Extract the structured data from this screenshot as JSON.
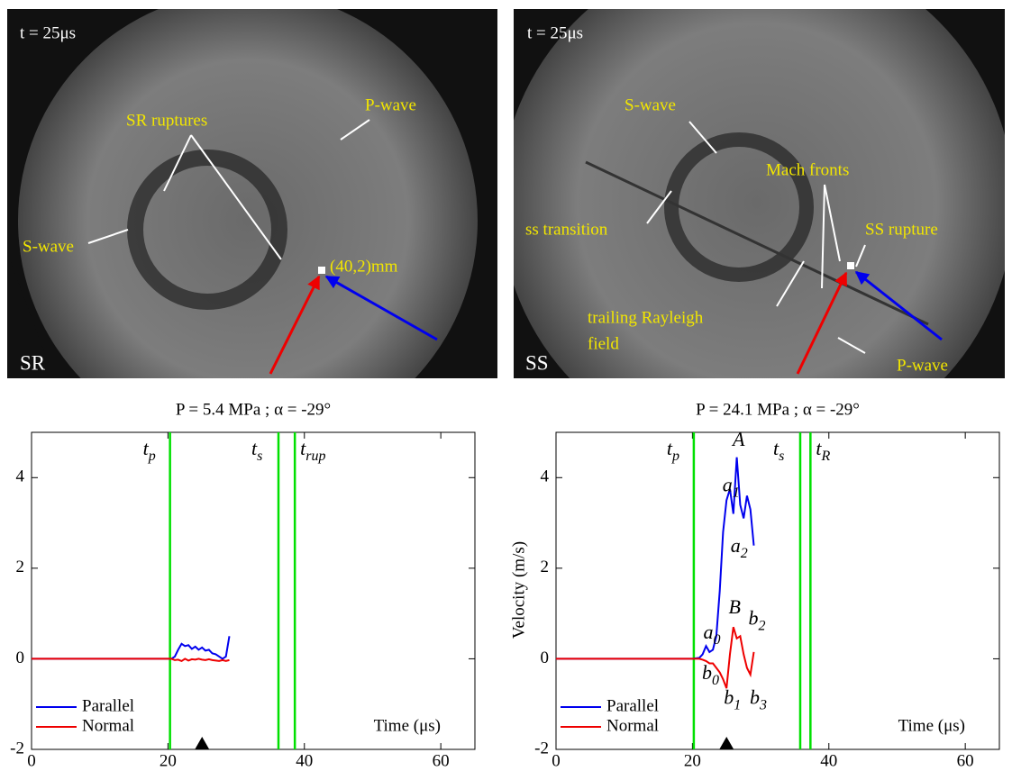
{
  "panels": [
    {
      "time_label": "t = 25μs",
      "corner_label": "SR",
      "annotations": [
        "SR ruptures",
        "P-wave",
        "S-wave",
        "(40,2)mm"
      ]
    },
    {
      "time_label": "t = 25μs",
      "corner_label": "SS",
      "annotations": [
        "S-wave",
        "Mach fronts",
        "ss transition",
        "SS rupture",
        "trailing Rayleigh",
        "field",
        "P-wave"
      ]
    }
  ],
  "chart_data": [
    {
      "type": "line",
      "title": "P =  5.4 MPa ; α = -29°",
      "xlabel": "Time (μs)",
      "x": [
        0,
        5,
        10,
        15,
        20,
        20.5,
        21,
        21.5,
        22,
        22.5,
        23,
        23.5,
        24,
        24.5,
        25,
        25.5,
        26,
        26.5,
        27,
        27.5,
        28,
        28.5,
        29
      ],
      "series": [
        {
          "name": "Parallel",
          "color": "#0000ee",
          "values": [
            0,
            0,
            0,
            0,
            0,
            0,
            0.05,
            0.2,
            0.33,
            0.28,
            0.3,
            0.22,
            0.27,
            0.2,
            0.25,
            0.18,
            0.2,
            0.12,
            0.1,
            0.05,
            0,
            0.05,
            0.5
          ]
        },
        {
          "name": "Normal",
          "color": "#ee0000",
          "values": [
            0,
            0,
            0,
            0,
            0,
            0,
            -0.03,
            -0.02,
            -0.05,
            0,
            -0.04,
            -0.01,
            -0.02,
            0,
            -0.02,
            -0.03,
            -0.01,
            -0.03,
            -0.04,
            -0.05,
            -0.03,
            -0.05,
            -0.03
          ]
        }
      ],
      "vlines": [
        {
          "x": 20.3,
          "label": "t",
          "sub": "p"
        },
        {
          "x": 36.2,
          "label": "t",
          "sub": "s"
        },
        {
          "x": 38.6,
          "label": "t",
          "sub": "rup"
        }
      ],
      "vline_color": "#00e000",
      "marker_x": 25,
      "xlim": [
        0,
        65
      ],
      "ylim": [
        -2,
        5
      ],
      "xticks": [
        0,
        20,
        40,
        60
      ],
      "yticks": [
        -2,
        0,
        2,
        4
      ],
      "legend": "lower left"
    },
    {
      "type": "line",
      "title": "P =  24.1 MPa ; α = -29°",
      "xlabel": "Time (μs)",
      "ylabel": "Velocity (m/s)",
      "x": [
        0,
        5,
        10,
        15,
        20,
        21,
        21.5,
        22,
        22.5,
        23,
        23.5,
        24,
        24.5,
        25,
        25.5,
        26,
        26.5,
        27,
        27.5,
        28,
        28.5,
        29
      ],
      "series": [
        {
          "name": "Parallel",
          "color": "#0000ee",
          "values": [
            0,
            0,
            0,
            0,
            0,
            0.02,
            0.1,
            0.28,
            0.15,
            0.2,
            0.5,
            1.5,
            2.8,
            3.5,
            3.75,
            3.2,
            4.45,
            3.4,
            3.1,
            3.6,
            3.3,
            2.5
          ]
        },
        {
          "name": "Normal",
          "color": "#ee0000",
          "values": [
            0,
            0,
            0,
            0,
            0,
            0,
            -0.02,
            -0.05,
            -0.1,
            -0.1,
            -0.2,
            -0.3,
            -0.45,
            -0.65,
            0.1,
            0.7,
            0.45,
            0.5,
            0.1,
            -0.2,
            -0.35,
            0.15
          ]
        }
      ],
      "vlines": [
        {
          "x": 20.2,
          "label": "t",
          "sub": "p"
        },
        {
          "x": 35.8,
          "label": "t",
          "sub": "s"
        },
        {
          "x": 37.3,
          "label": "t",
          "sub": "R"
        }
      ],
      "vline_color": "#00e000",
      "marker_x": 25,
      "annotations": [
        {
          "text": "A",
          "x": 25.9,
          "y": 4.8
        },
        {
          "text": "a",
          "sub": "1",
          "x": 24.4,
          "y": 3.8
        },
        {
          "text": "a",
          "sub": "2",
          "x": 25.6,
          "y": 2.45
        },
        {
          "text": "a",
          "sub": "0",
          "x": 21.6,
          "y": 0.55
        },
        {
          "text": "B",
          "x": 25.3,
          "y": 1.1
        },
        {
          "text": "b",
          "sub": "2",
          "x": 28.2,
          "y": 0.85
        },
        {
          "text": "b",
          "sub": "0",
          "x": 21.4,
          "y": -0.35
        },
        {
          "text": "b",
          "sub": "1",
          "x": 24.6,
          "y": -0.9
        },
        {
          "text": "b",
          "sub": "3",
          "x": 28.4,
          "y": -0.9
        }
      ],
      "xlim": [
        0,
        65
      ],
      "ylim": [
        -2,
        5
      ],
      "xticks": [
        0,
        20,
        40,
        60
      ],
      "yticks": [
        -2,
        0,
        2,
        4
      ],
      "legend": "lower left"
    }
  ]
}
